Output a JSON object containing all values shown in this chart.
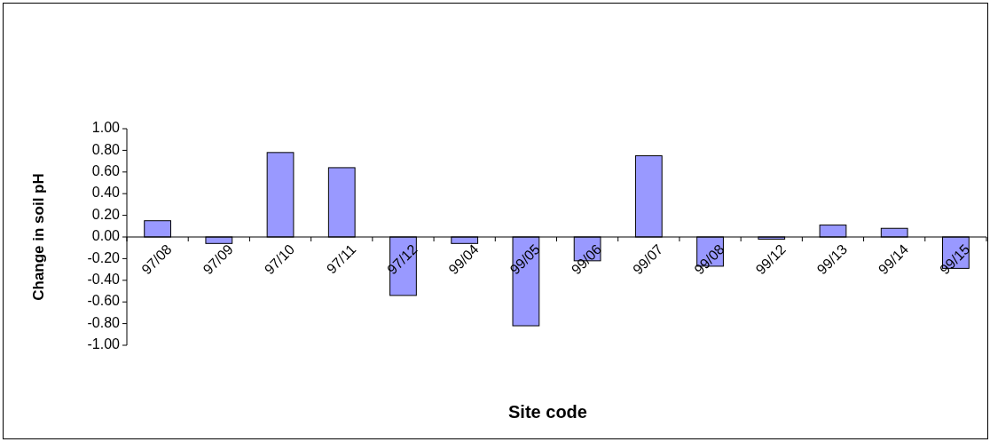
{
  "chart_data": {
    "type": "bar",
    "xlabel": "Site code",
    "ylabel": "Change in soil pH",
    "categories": [
      "97/08",
      "97/09",
      "97/10",
      "97/11",
      "97/12",
      "99/04",
      "99/05",
      "99/06",
      "99/07",
      "99/08",
      "99/12",
      "99/13",
      "99/14",
      "99/15"
    ],
    "values": [
      0.15,
      -0.06,
      0.78,
      0.64,
      -0.54,
      -0.06,
      -0.82,
      -0.22,
      0.75,
      -0.27,
      -0.02,
      0.11,
      0.08,
      -0.29
    ],
    "color": "#9999ff",
    "ylim": [
      -1,
      1
    ],
    "yticks": [
      {
        "value": -1,
        "label": "-1.00"
      },
      {
        "value": -0.8,
        "label": "-0.80"
      },
      {
        "value": -0.6,
        "label": "-0.60"
      },
      {
        "value": -0.4,
        "label": "-0.40"
      },
      {
        "value": -0.2,
        "label": "-0.20"
      },
      {
        "value": 0,
        "label": "0.00"
      },
      {
        "value": 0.2,
        "label": "0.20"
      },
      {
        "value": 0.4,
        "label": "0.40"
      },
      {
        "value": 0.6,
        "label": "0.60"
      },
      {
        "value": 0.8,
        "label": "0.80"
      },
      {
        "value": 1,
        "label": "1.00"
      }
    ],
    "grid": false
  }
}
